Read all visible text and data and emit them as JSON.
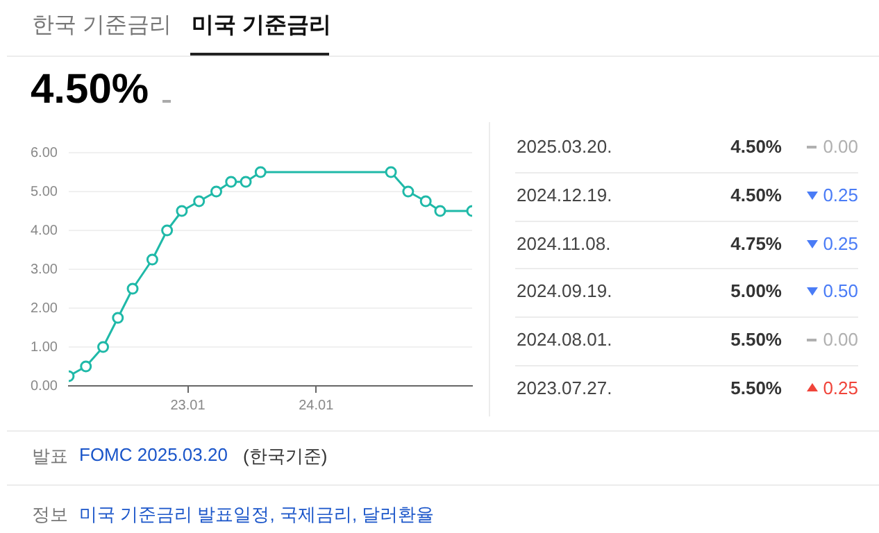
{
  "chart_data": [
    {
      "type": "other",
      "annotations": [
        "한국 기준금리",
        "미국 기준금리",
        "4.50%"
      ]
    },
    {
      "type": "line",
      "x": [
        "2022-01-27",
        "2022-03-17",
        "2022-05-05",
        "2022-06-16",
        "2022-07-28",
        "2022-09-22",
        "2022-11-03",
        "2022-12-15",
        "2023-02-02",
        "2023-03-23",
        "2023-05-04",
        "2023-06-15",
        "2023-07-27",
        "2024-08-01",
        "2024-09-19",
        "2024-11-08",
        "2024-12-19",
        "2025-03-20"
      ],
      "series": [
        {
          "color": "#1fb9a8",
          "values": [
            0.25,
            0.5,
            1.0,
            1.75,
            2.5,
            3.25,
            4.0,
            4.5,
            4.75,
            5.0,
            5.25,
            5.25,
            5.5,
            5.5,
            5.0,
            4.75,
            4.5,
            4.5
          ]
        }
      ],
      "xlim": [
        "2022-01-27",
        "2025-03-20"
      ],
      "xticks": [
        {
          "value": "2023-01-01",
          "label": "23.01"
        },
        {
          "value": "2024-01-01",
          "label": "24.01"
        }
      ],
      "ylim": [
        0,
        6
      ],
      "yticks": [
        {
          "value": 0,
          "label": "0.00"
        },
        {
          "value": 1,
          "label": "1.00"
        },
        {
          "value": 2,
          "label": "2.00"
        },
        {
          "value": 3,
          "label": "3.00"
        },
        {
          "value": 4,
          "label": "4.00"
        },
        {
          "value": 5,
          "label": "5.00"
        },
        {
          "value": 6,
          "label": "6.00"
        }
      ],
      "grid": "y",
      "legend": false,
      "marker": "circle"
    },
    {
      "type": "other",
      "categories": [
        "2025.03.20.",
        "2024.12.19.",
        "2024.11.08.",
        "2024.09.19.",
        "2024.08.01.",
        "2023.07.27."
      ],
      "series": [
        {
          "color": "#333333",
          "values": [
            4.5,
            4.5,
            4.75,
            5.0,
            5.5,
            5.5
          ],
          "value_labels": [
            "4.50%",
            "4.50%",
            "4.75%",
            "5.00%",
            "5.50%",
            "5.50%"
          ]
        },
        {
          "colors": [
            "#b0b0b0",
            "#4a7cf6",
            "#4a7cf6",
            "#4a7cf6",
            "#b0b0b0",
            "#f0443a"
          ],
          "values": [
            0,
            0.25,
            0.25,
            0.5,
            0,
            0.25
          ],
          "value_labels": [
            "0.00",
            "0.25",
            "0.25",
            "0.50",
            "0.00",
            "0.25"
          ]
        }
      ]
    },
    {
      "type": "other",
      "annotations": [
        "발표",
        "FOMC 2025.03.20",
        "(한국기준)",
        "정보",
        "미국 기준금리 발표일정, 국제금리, 달러환율"
      ]
    }
  ]
}
